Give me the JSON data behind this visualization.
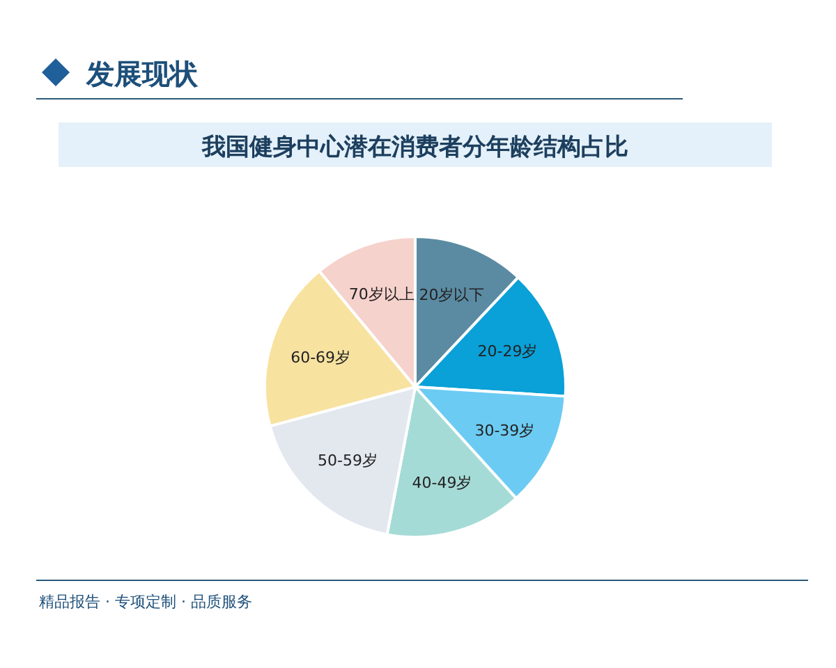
{
  "chart_data": {
    "type": "pie",
    "subtitle": "发展现状",
    "title": "我国健身中心潜在消费者分年龄结构占比",
    "categories": [
      "20岁以下",
      "20-29岁",
      "30-39岁",
      "40-49岁",
      "50-59岁",
      "60-69岁",
      "70岁以上"
    ],
    "values": [
      12,
      14,
      12.3,
      14.7,
      17.8,
      18.2,
      11
    ],
    "colors": [
      "#5b8ba3",
      "#0aa0d8",
      "#6ccbf3",
      "#a5dbd6",
      "#e3e8ef",
      "#f8e2a0",
      "#f6d2cc"
    ],
    "annotations": [
      "精品报告 · 专项定制 · 品质服务"
    ]
  }
}
